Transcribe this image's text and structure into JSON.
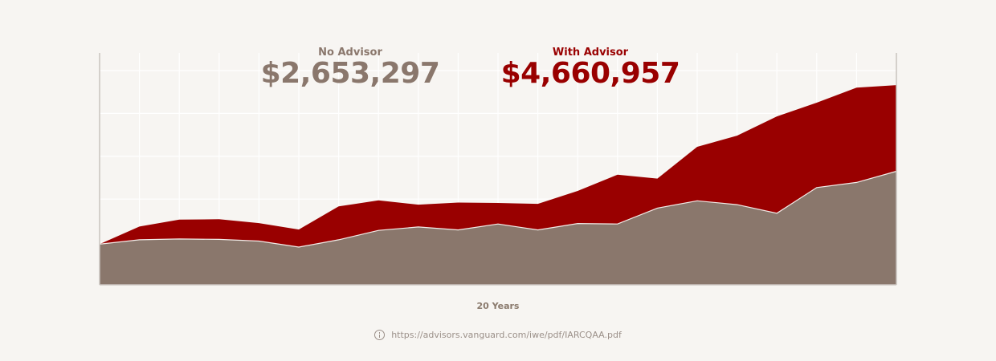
{
  "colors": {
    "background": "#f7f5f2",
    "no_advisor": "#8a776c",
    "with_advisor": "#990000",
    "grid": "#ffffff",
    "axis": "#c9c3be"
  },
  "legend": {
    "no_advisor_label": "No Advisor",
    "no_advisor_value": "$2,653,297",
    "with_advisor_label": "With Advisor",
    "with_advisor_value": "$4,660,957"
  },
  "source": {
    "icon": "info-icon",
    "url": "https://advisors.vanguard.com/iwe/pdf/IARCQAA.pdf"
  },
  "chart_data": {
    "type": "area",
    "xlabel": "20 Years",
    "ylabel": "",
    "x": [
      0,
      1,
      2,
      3,
      4,
      5,
      6,
      7,
      8,
      9,
      10,
      11,
      12,
      13,
      14,
      15,
      16,
      17,
      18,
      19,
      20
    ],
    "ylim": [
      0,
      5
    ],
    "grid": true,
    "series": [
      {
        "name": "With Advisor",
        "values": [
          0.95,
          1.36,
          1.52,
          1.53,
          1.44,
          1.29,
          1.83,
          1.97,
          1.87,
          1.92,
          1.91,
          1.89,
          2.19,
          2.57,
          2.48,
          3.22,
          3.48,
          3.93,
          4.25,
          4.6,
          4.66
        ]
      },
      {
        "name": "No Advisor",
        "values": [
          0.95,
          1.05,
          1.07,
          1.06,
          1.02,
          0.88,
          1.05,
          1.27,
          1.35,
          1.28,
          1.42,
          1.28,
          1.43,
          1.42,
          1.79,
          1.96,
          1.87,
          1.67,
          2.27,
          2.39,
          2.65
        ]
      }
    ]
  }
}
